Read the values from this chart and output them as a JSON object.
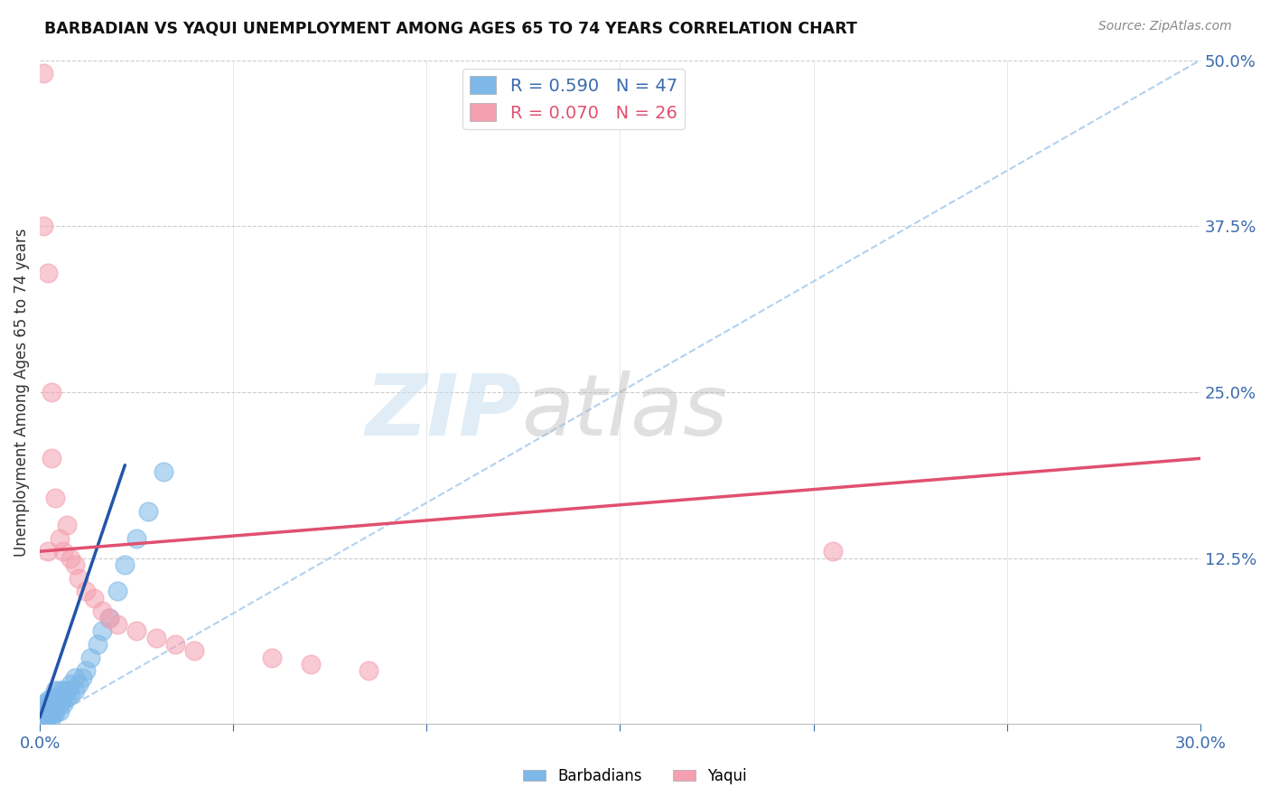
{
  "title": "BARBADIAN VS YAQUI UNEMPLOYMENT AMONG AGES 65 TO 74 YEARS CORRELATION CHART",
  "source": "Source: ZipAtlas.com",
  "ylabel": "Unemployment Among Ages 65 to 74 years",
  "xlim": [
    0.0,
    0.3
  ],
  "ylim": [
    0.0,
    0.5
  ],
  "xticks": [
    0.0,
    0.05,
    0.1,
    0.15,
    0.2,
    0.25,
    0.3
  ],
  "xticklabels": [
    "0.0%",
    "",
    "",
    "",
    "",
    "",
    "30.0%"
  ],
  "yticks_right": [
    0.0,
    0.125,
    0.25,
    0.375,
    0.5
  ],
  "yticklabels_right": [
    "",
    "12.5%",
    "25.0%",
    "37.5%",
    "50.0%"
  ],
  "barbadian_R": 0.59,
  "barbadian_N": 47,
  "yaqui_R": 0.07,
  "yaqui_N": 26,
  "barbadian_color": "#7db8e8",
  "yaqui_color": "#f4a0b0",
  "barbadian_line_color": "#2255aa",
  "yaqui_line_color": "#e05070",
  "dashed_line_color": "#aaccee",
  "background_color": "#ffffff",
  "grid_color": "#cccccc",
  "barbadian_x": [
    0.001,
    0.001,
    0.001,
    0.001,
    0.001,
    0.002,
    0.002,
    0.002,
    0.002,
    0.002,
    0.002,
    0.003,
    0.003,
    0.003,
    0.003,
    0.003,
    0.003,
    0.004,
    0.004,
    0.004,
    0.004,
    0.004,
    0.005,
    0.005,
    0.005,
    0.005,
    0.006,
    0.006,
    0.006,
    0.007,
    0.007,
    0.008,
    0.008,
    0.009,
    0.009,
    0.01,
    0.011,
    0.012,
    0.013,
    0.015,
    0.016,
    0.018,
    0.02,
    0.022,
    0.025,
    0.028,
    0.032
  ],
  "barbadian_y": [
    0.005,
    0.008,
    0.01,
    0.012,
    0.015,
    0.005,
    0.008,
    0.01,
    0.012,
    0.015,
    0.018,
    0.005,
    0.008,
    0.01,
    0.012,
    0.015,
    0.02,
    0.008,
    0.01,
    0.015,
    0.02,
    0.025,
    0.01,
    0.015,
    0.02,
    0.025,
    0.015,
    0.02,
    0.025,
    0.02,
    0.025,
    0.022,
    0.03,
    0.025,
    0.035,
    0.03,
    0.035,
    0.04,
    0.05,
    0.06,
    0.07,
    0.08,
    0.1,
    0.12,
    0.14,
    0.16,
    0.19
  ],
  "yaqui_x": [
    0.001,
    0.001,
    0.002,
    0.002,
    0.003,
    0.003,
    0.004,
    0.005,
    0.006,
    0.007,
    0.008,
    0.009,
    0.01,
    0.012,
    0.014,
    0.016,
    0.018,
    0.02,
    0.025,
    0.03,
    0.035,
    0.04,
    0.06,
    0.07,
    0.085,
    0.205
  ],
  "yaqui_y": [
    0.49,
    0.375,
    0.34,
    0.13,
    0.25,
    0.2,
    0.17,
    0.14,
    0.13,
    0.15,
    0.125,
    0.12,
    0.11,
    0.1,
    0.095,
    0.085,
    0.08,
    0.075,
    0.07,
    0.065,
    0.06,
    0.055,
    0.05,
    0.045,
    0.04,
    0.13
  ],
  "barb_line_x0": 0.0,
  "barb_line_y0": 0.005,
  "barb_line_x1": 0.022,
  "barb_line_y1": 0.195,
  "yaqui_line_x0": 0.0,
  "yaqui_line_y0": 0.13,
  "yaqui_line_x1": 0.3,
  "yaqui_line_y1": 0.2,
  "diag_line_x0": 0.0,
  "diag_line_y0": 0.0,
  "diag_line_x1": 0.3,
  "diag_line_y1": 0.5
}
